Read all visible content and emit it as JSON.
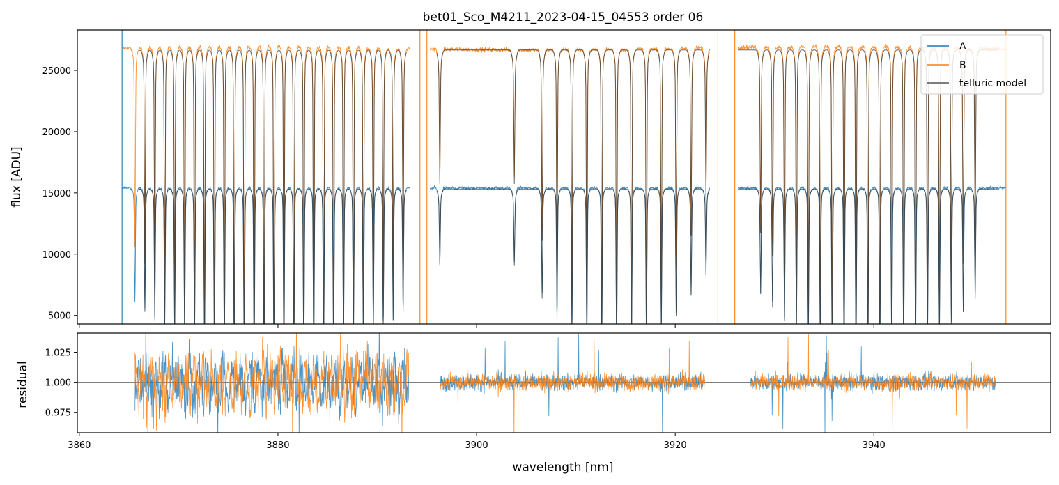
{
  "title": "bet01_Sco_M4211_2023-04-15_04553  order 06",
  "chart_data": [
    {
      "panel": "top",
      "type": "line",
      "title": "bet01_Sco_M4211_2023-04-15_04553  order 06",
      "xlabel": "",
      "ylabel": "flux [ADU]",
      "xlim": [
        3859.8,
        3957.8
      ],
      "ylim": [
        4300,
        28300
      ],
      "yticks": [
        5000,
        10000,
        15000,
        20000,
        25000
      ],
      "ytick_labels": [
        "5000",
        "10000",
        "15000",
        "20000",
        "25000"
      ],
      "xticks": [
        3860,
        3880,
        3900,
        3920,
        3940
      ],
      "legend_position": "top-right",
      "legend": [
        "A",
        "B",
        "telluric model"
      ],
      "series": [
        {
          "name": "A",
          "color": "#1f77b4",
          "continuum": 15400,
          "x_range": [
            3864.3,
            3953.3
          ]
        },
        {
          "name": "B",
          "color": "#ff7f0e",
          "continuum": 26800,
          "x_range": [
            3864.3,
            3953.3
          ]
        },
        {
          "name": "telluric model",
          "color": "#333333",
          "note": "overlaid on both A and B continua"
        }
      ],
      "absorption_lines_nm": [
        3865.6,
        3866.6,
        3867.6,
        3868.6,
        3869.6,
        3870.6,
        3871.6,
        3872.6,
        3873.6,
        3874.6,
        3875.6,
        3876.6,
        3877.6,
        3878.6,
        3879.6,
        3880.6,
        3881.6,
        3882.6,
        3883.6,
        3884.6,
        3885.6,
        3886.6,
        3887.6,
        3888.6,
        3889.6,
        3890.6,
        3891.6,
        3892.6,
        3896.3,
        3903.8,
        3906.6,
        3908.1,
        3909.6,
        3911.1,
        3912.6,
        3914.1,
        3915.6,
        3917.1,
        3918.6,
        3920.1,
        3921.6,
        3923.1,
        3928.6,
        3929.8,
        3931.0,
        3932.2,
        3933.4,
        3934.6,
        3935.8,
        3937.0,
        3938.2,
        3939.4,
        3940.6,
        3941.8,
        3943.0,
        3944.2,
        3945.4,
        3946.6,
        3947.8,
        3949.0,
        3950.2
      ],
      "gaps_nm": [
        [
          3893.3,
          3895.3
        ],
        [
          3923.5,
          3926.3
        ]
      ],
      "spikes_nm": [
        3864.3,
        3894.3,
        3895.0,
        3924.3,
        3926.0,
        3953.3
      ]
    },
    {
      "panel": "bottom",
      "type": "line",
      "xlabel": "wavelength [nm]",
      "ylabel": "residual",
      "xlim": [
        3859.8,
        3957.8
      ],
      "ylim": [
        0.958,
        1.041
      ],
      "yticks": [
        0.975,
        1.0,
        1.025
      ],
      "ytick_labels": [
        "0.975",
        "1.000",
        "1.025"
      ],
      "xticks": [
        3860,
        3880,
        3900,
        3920,
        3940
      ],
      "xtick_labels": [
        "3860",
        "3880",
        "3900",
        "3920",
        "3940"
      ],
      "reference_line": 1.0,
      "segments_nm": [
        [
          3865.6,
          3893.2
        ],
        [
          3896.3,
          3923.0
        ],
        [
          3927.6,
          3952.3
        ]
      ],
      "series": [
        {
          "name": "A",
          "color": "#1f77b4"
        },
        {
          "name": "B",
          "color": "#ff7f0e"
        }
      ]
    }
  ]
}
